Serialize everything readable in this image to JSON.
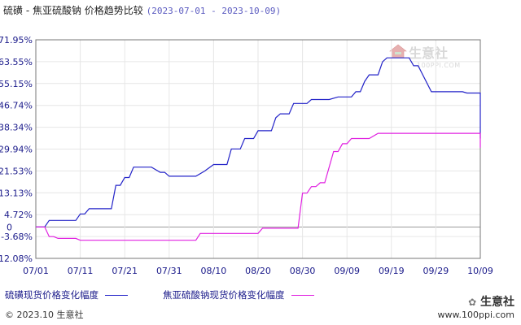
{
  "title": "硫磺 - 焦亚硫酸钠 价格趋势比较",
  "date_range": "(2023-07-01 - 2023-10-09)",
  "copyright": "© 2023.10 生意社",
  "watermark": {
    "brand": "生意社",
    "url": "100PPI.COM",
    "bottom_url": "www.100ppi.com"
  },
  "colors": {
    "series1": "#2323c8",
    "series2": "#e020e0",
    "grid": "#e6e6e6",
    "axis": "#777777",
    "tick_text": "#1a1a8a"
  },
  "chart_data": {
    "type": "line",
    "x_ticks": [
      "07/01",
      "07/11",
      "07/21",
      "07/31",
      "08/10",
      "08/20",
      "08/30",
      "09/09",
      "09/19",
      "09/29",
      "10/09"
    ],
    "y_ticks": [
      "71.95%",
      "63.55%",
      "55.15%",
      "46.74%",
      "38.34%",
      "29.94%",
      "21.53%",
      "13.13%",
      "4.72%",
      "0",
      "-3.68%",
      "-12.08%"
    ],
    "y_tick_values": [
      71.95,
      63.55,
      55.15,
      46.74,
      38.34,
      29.94,
      21.53,
      13.13,
      4.72,
      0,
      -3.68,
      -12.08
    ],
    "ylim": [
      -12.08,
      71.95
    ],
    "grid": true,
    "legend_position": "bottom",
    "series": [
      {
        "name": "硫磺现货价格变化幅度",
        "points": [
          [
            "07/01",
            0
          ],
          [
            "07/03",
            0
          ],
          [
            "07/04",
            2.5
          ],
          [
            "07/10",
            2.5
          ],
          [
            "07/11",
            5
          ],
          [
            "07/12",
            5
          ],
          [
            "07/13",
            7
          ],
          [
            "07/18",
            7
          ],
          [
            "07/19",
            16
          ],
          [
            "07/20",
            16
          ],
          [
            "07/21",
            19
          ],
          [
            "07/22",
            19
          ],
          [
            "07/23",
            23
          ],
          [
            "07/27",
            23
          ],
          [
            "07/29",
            21
          ],
          [
            "07/30",
            21
          ],
          [
            "07/31",
            19.5
          ],
          [
            "08/06",
            19.5
          ],
          [
            "08/08",
            21.5
          ],
          [
            "08/10",
            24
          ],
          [
            "08/13",
            24
          ],
          [
            "08/14",
            30
          ],
          [
            "08/16",
            30
          ],
          [
            "08/17",
            34
          ],
          [
            "08/19",
            34
          ],
          [
            "08/20",
            37
          ],
          [
            "08/23",
            37
          ],
          [
            "08/24",
            42
          ],
          [
            "08/25",
            43.5
          ],
          [
            "08/27",
            43.5
          ],
          [
            "08/28",
            47.5
          ],
          [
            "08/31",
            47.5
          ],
          [
            "09/01",
            49
          ],
          [
            "09/05",
            49
          ],
          [
            "09/07",
            50
          ],
          [
            "09/10",
            50
          ],
          [
            "09/11",
            52
          ],
          [
            "09/12",
            52
          ],
          [
            "09/13",
            56
          ],
          [
            "09/14",
            58.5
          ],
          [
            "09/16",
            58.5
          ],
          [
            "09/17",
            63.5
          ],
          [
            "09/18",
            65
          ],
          [
            "09/23",
            65
          ],
          [
            "09/24",
            62
          ],
          [
            "09/25",
            62
          ],
          [
            "09/28",
            52
          ],
          [
            "10/05",
            52
          ],
          [
            "10/06",
            51.5
          ],
          [
            "10/09",
            51.5
          ],
          [
            "10/11",
            42
          ],
          [
            "10/24",
            42
          ],
          [
            "10/25",
            34
          ],
          [
            "10/27",
            34
          ]
        ]
      },
      {
        "name": "焦亚硫酸钠现货价格变化幅度",
        "points": [
          [
            "07/01",
            0
          ],
          [
            "07/03",
            0
          ],
          [
            "07/04",
            -3.7
          ],
          [
            "07/05",
            -3.7
          ],
          [
            "07/06",
            -4.4
          ],
          [
            "07/10",
            -4.4
          ],
          [
            "07/11",
            -5.1
          ],
          [
            "08/06",
            -5.1
          ],
          [
            "08/07",
            -2.5
          ],
          [
            "08/20",
            -2.5
          ],
          [
            "08/21",
            -0.5
          ],
          [
            "08/29",
            -0.5
          ],
          [
            "08/30",
            13
          ],
          [
            "08/31",
            13
          ],
          [
            "09/01",
            15.5
          ],
          [
            "09/02",
            15.5
          ],
          [
            "09/03",
            17
          ],
          [
            "09/04",
            17
          ],
          [
            "09/06",
            29
          ],
          [
            "09/07",
            29
          ],
          [
            "09/08",
            32
          ],
          [
            "09/09",
            32
          ],
          [
            "09/10",
            34
          ],
          [
            "09/14",
            34
          ],
          [
            "09/16",
            36
          ],
          [
            "10/24",
            36
          ],
          [
            "10/25",
            30.5
          ],
          [
            "10/27",
            30.5
          ]
        ]
      }
    ]
  }
}
